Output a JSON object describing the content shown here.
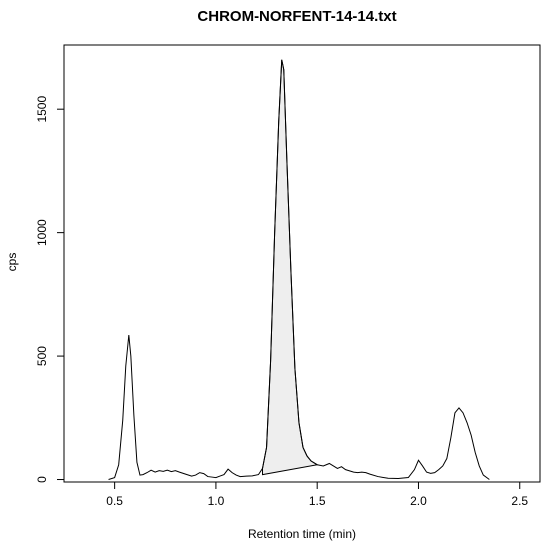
{
  "chart_data": {
    "type": "line",
    "title": "CHROM-NORFENT-14-14.txt",
    "xlabel": "Retention time (min)",
    "ylabel": "cps",
    "xlim": [
      0.25,
      2.6
    ],
    "ylim": [
      -10,
      1760
    ],
    "x_ticks": [
      0.5,
      1.0,
      1.5,
      2.0,
      2.5
    ],
    "x_tick_labels": [
      "0.5",
      "1.0",
      "1.5",
      "2.0",
      "2.5"
    ],
    "y_ticks": [
      0,
      500,
      1000,
      1500
    ],
    "y_tick_labels": [
      "0",
      "500",
      "1000",
      "1500"
    ],
    "grid": false,
    "colors": {
      "line": "#000000",
      "fill": "#eeeeee",
      "background": "#ffffff"
    },
    "series": [
      {
        "values": [
          [
            0.47,
            0
          ],
          [
            0.5,
            8
          ],
          [
            0.52,
            60
          ],
          [
            0.54,
            240
          ],
          [
            0.555,
            460
          ],
          [
            0.57,
            585
          ],
          [
            0.58,
            500
          ],
          [
            0.595,
            260
          ],
          [
            0.61,
            70
          ],
          [
            0.625,
            18
          ],
          [
            0.64,
            20
          ],
          [
            0.66,
            28
          ],
          [
            0.68,
            38
          ],
          [
            0.7,
            30
          ],
          [
            0.72,
            36
          ],
          [
            0.74,
            33
          ],
          [
            0.76,
            38
          ],
          [
            0.78,
            32
          ],
          [
            0.8,
            36
          ],
          [
            0.82,
            30
          ],
          [
            0.85,
            22
          ],
          [
            0.88,
            14
          ],
          [
            0.9,
            18
          ],
          [
            0.92,
            28
          ],
          [
            0.94,
            24
          ],
          [
            0.96,
            12
          ],
          [
            0.98,
            10
          ],
          [
            1.0,
            8
          ],
          [
            1.02,
            14
          ],
          [
            1.04,
            20
          ],
          [
            1.06,
            42
          ],
          [
            1.08,
            28
          ],
          [
            1.1,
            18
          ],
          [
            1.12,
            12
          ],
          [
            1.15,
            14
          ],
          [
            1.18,
            15
          ],
          [
            1.21,
            20
          ],
          [
            1.23,
            45
          ],
          [
            1.25,
            130
          ],
          [
            1.27,
            480
          ],
          [
            1.29,
            1000
          ],
          [
            1.31,
            1450
          ],
          [
            1.325,
            1700
          ],
          [
            1.335,
            1660
          ],
          [
            1.35,
            1300
          ],
          [
            1.37,
            850
          ],
          [
            1.39,
            450
          ],
          [
            1.41,
            230
          ],
          [
            1.43,
            130
          ],
          [
            1.45,
            95
          ],
          [
            1.47,
            75
          ],
          [
            1.5,
            60
          ],
          [
            1.53,
            55
          ],
          [
            1.56,
            65
          ],
          [
            1.58,
            55
          ],
          [
            1.6,
            45
          ],
          [
            1.62,
            52
          ],
          [
            1.64,
            40
          ],
          [
            1.66,
            35
          ],
          [
            1.68,
            30
          ],
          [
            1.7,
            28
          ],
          [
            1.72,
            30
          ],
          [
            1.74,
            28
          ],
          [
            1.76,
            22
          ],
          [
            1.8,
            12
          ],
          [
            1.85,
            5
          ],
          [
            1.9,
            4
          ],
          [
            1.95,
            8
          ],
          [
            1.98,
            40
          ],
          [
            2.0,
            78
          ],
          [
            2.02,
            55
          ],
          [
            2.04,
            30
          ],
          [
            2.06,
            25
          ],
          [
            2.08,
            28
          ],
          [
            2.1,
            40
          ],
          [
            2.12,
            55
          ],
          [
            2.14,
            85
          ],
          [
            2.16,
            170
          ],
          [
            2.18,
            270
          ],
          [
            2.2,
            290
          ],
          [
            2.22,
            270
          ],
          [
            2.24,
            230
          ],
          [
            2.26,
            180
          ],
          [
            2.28,
            110
          ],
          [
            2.3,
            55
          ],
          [
            2.32,
            18
          ],
          [
            2.35,
            0
          ]
        ]
      }
    ],
    "shaded_region": {
      "x_start": 1.23,
      "x_end": 1.5,
      "baseline_start": 20,
      "baseline_end": 60
    }
  }
}
